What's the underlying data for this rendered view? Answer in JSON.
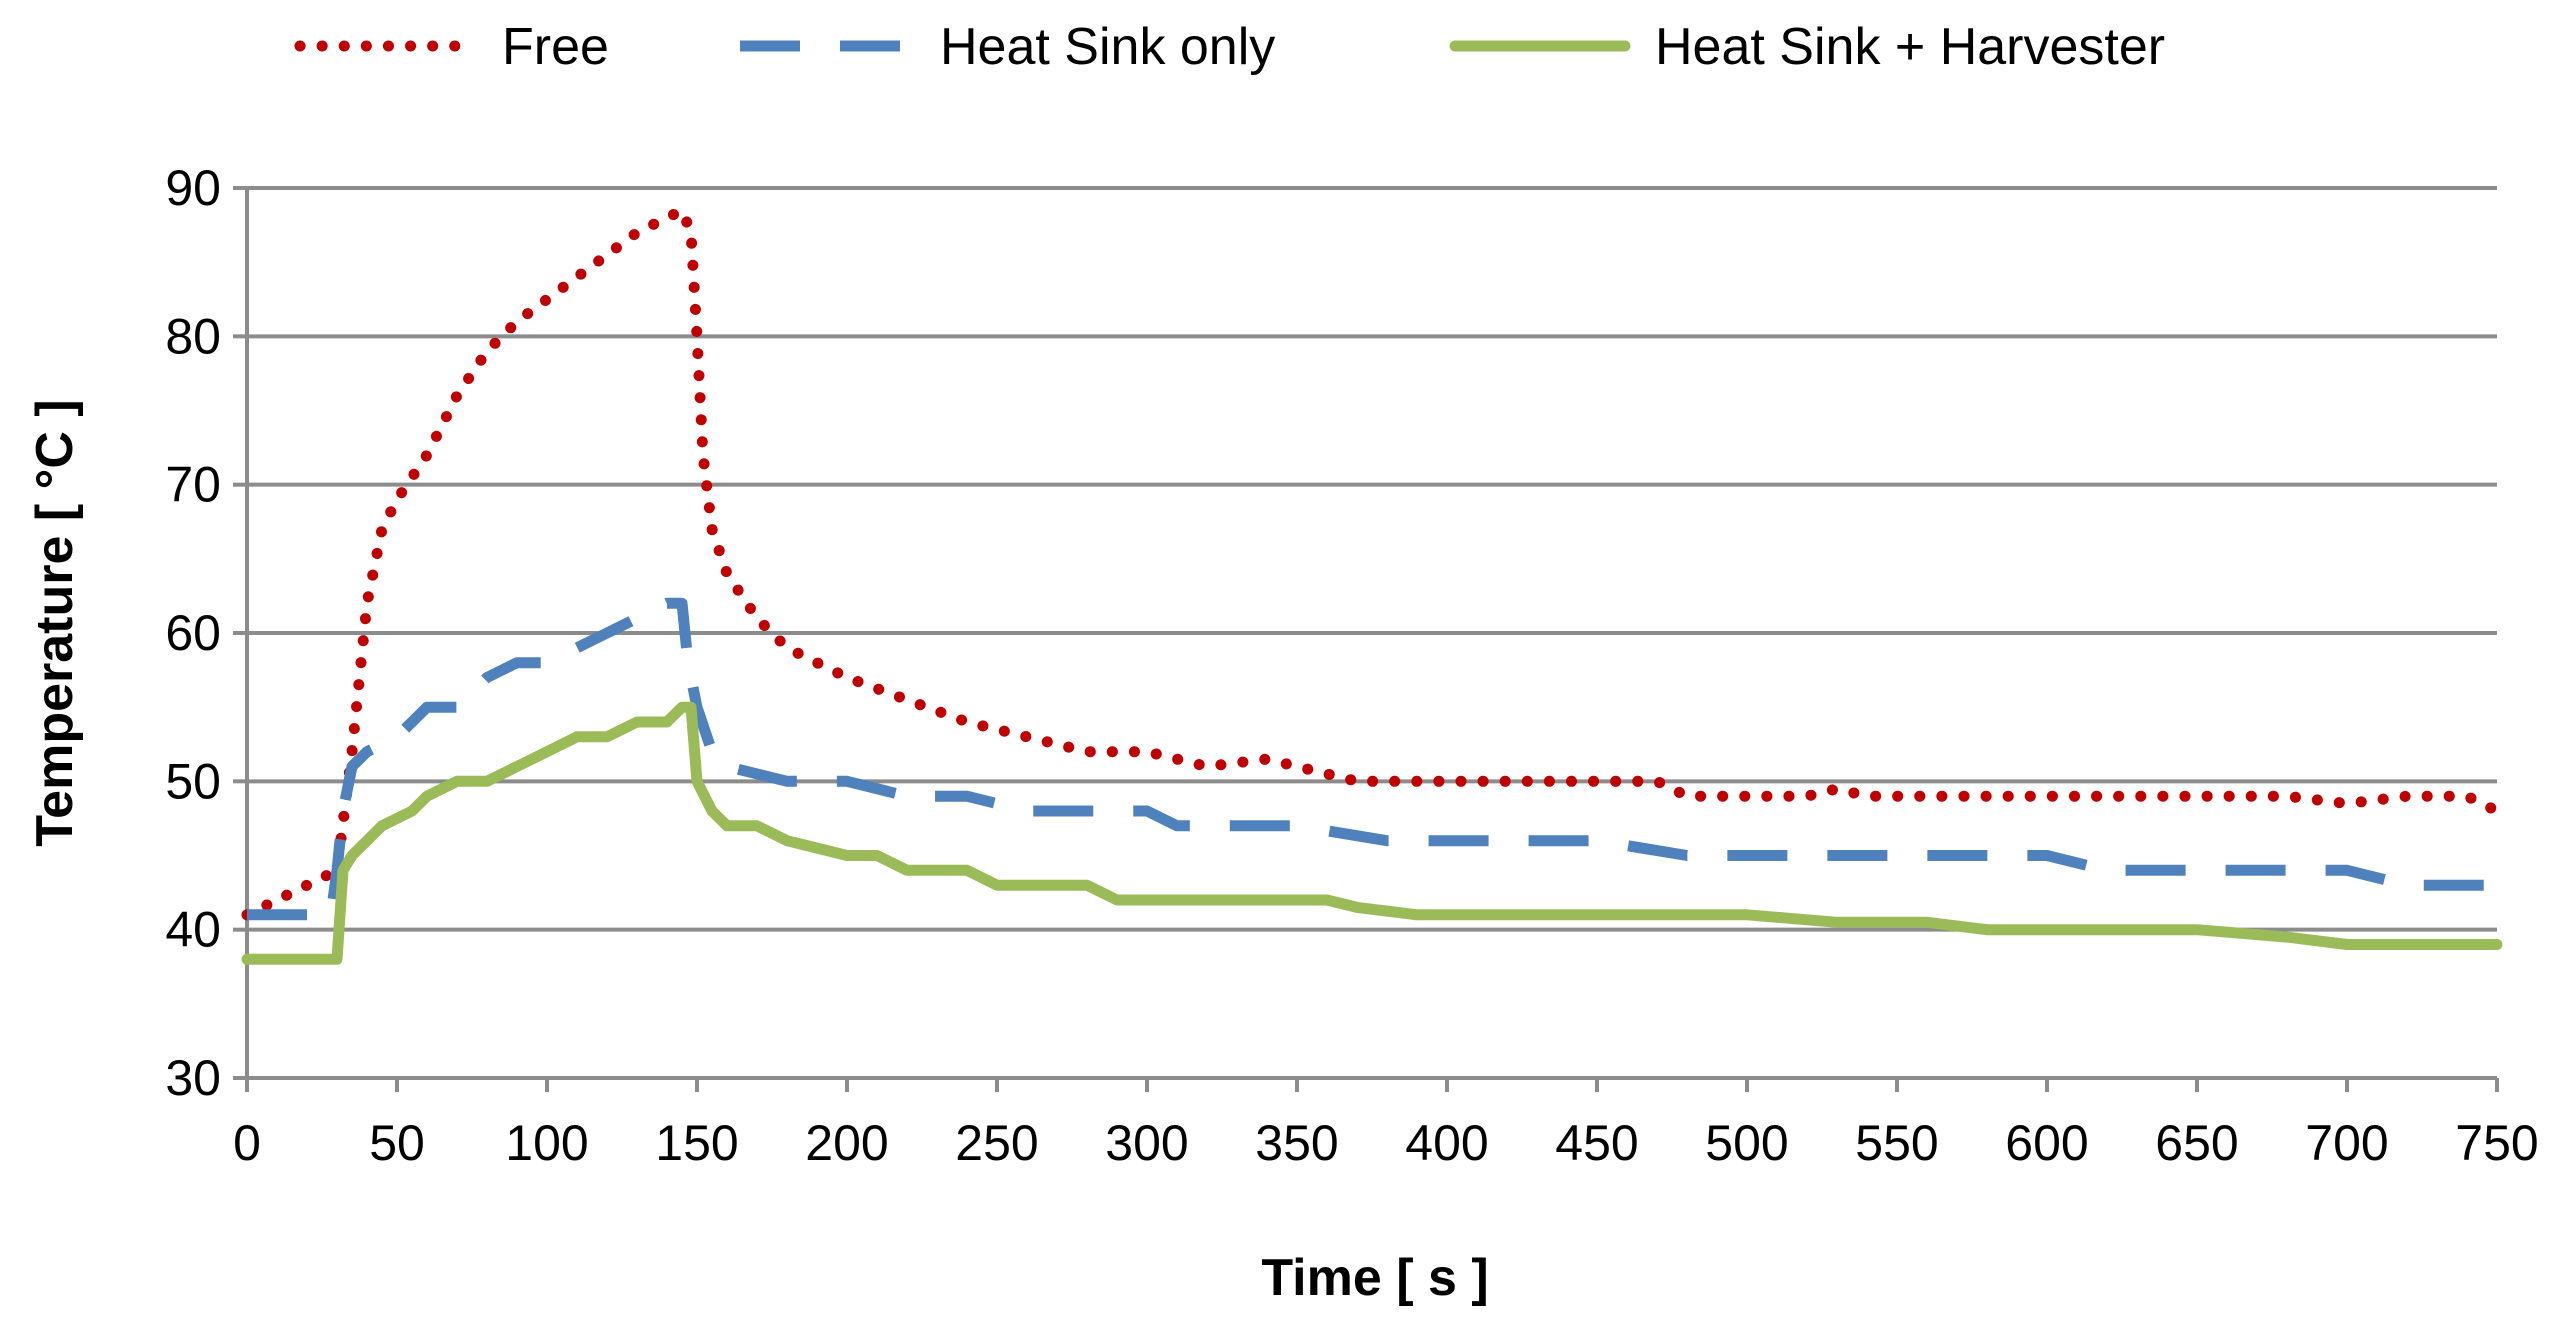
{
  "chart_data": {
    "type": "line",
    "title": "",
    "xlabel": "Time [ s ]",
    "ylabel": "Temperature [ °C ]",
    "xlim": [
      0,
      750
    ],
    "ylim": [
      30,
      90
    ],
    "x_ticks": [
      "0",
      "50",
      "100",
      "150",
      "200",
      "250",
      "300",
      "350",
      "400",
      "450",
      "500",
      "550",
      "600",
      "650",
      "700",
      "750"
    ],
    "y_ticks": [
      "30",
      "40",
      "50",
      "60",
      "70",
      "80",
      "90"
    ],
    "grid": "horizontal",
    "legend_position": "top",
    "series": [
      {
        "name": "Free",
        "color": "#C00000",
        "style": "dotted",
        "points": [
          [
            0,
            41
          ],
          [
            10,
            42
          ],
          [
            20,
            43
          ],
          [
            30,
            44
          ],
          [
            35,
            52
          ],
          [
            40,
            62
          ],
          [
            45,
            67
          ],
          [
            50,
            69
          ],
          [
            60,
            72
          ],
          [
            70,
            76
          ],
          [
            80,
            79
          ],
          [
            90,
            81
          ],
          [
            100,
            82.5
          ],
          [
            110,
            84
          ],
          [
            120,
            85.5
          ],
          [
            130,
            87
          ],
          [
            140,
            88
          ],
          [
            145,
            88.5
          ],
          [
            148,
            87
          ],
          [
            150,
            80
          ],
          [
            152,
            72
          ],
          [
            155,
            67
          ],
          [
            160,
            64
          ],
          [
            170,
            61
          ],
          [
            180,
            59
          ],
          [
            190,
            58
          ],
          [
            200,
            57
          ],
          [
            220,
            55.5
          ],
          [
            240,
            54
          ],
          [
            260,
            53
          ],
          [
            280,
            52
          ],
          [
            300,
            52
          ],
          [
            310,
            51.5
          ],
          [
            320,
            51
          ],
          [
            340,
            51.5
          ],
          [
            350,
            51
          ],
          [
            360,
            50.5
          ],
          [
            370,
            50
          ],
          [
            400,
            50
          ],
          [
            450,
            50
          ],
          [
            470,
            50
          ],
          [
            480,
            49
          ],
          [
            500,
            49
          ],
          [
            520,
            49
          ],
          [
            530,
            49.5
          ],
          [
            540,
            49
          ],
          [
            600,
            49
          ],
          [
            650,
            49
          ],
          [
            680,
            49
          ],
          [
            700,
            48.5
          ],
          [
            720,
            49
          ],
          [
            740,
            49
          ],
          [
            750,
            48
          ]
        ]
      },
      {
        "name": "Heat Sink only",
        "color": "#4F81BD",
        "style": "dashed",
        "points": [
          [
            0,
            41
          ],
          [
            28,
            41
          ],
          [
            30,
            44
          ],
          [
            32,
            48
          ],
          [
            35,
            51
          ],
          [
            40,
            52
          ],
          [
            50,
            53
          ],
          [
            60,
            55
          ],
          [
            70,
            55
          ],
          [
            80,
            57
          ],
          [
            90,
            58
          ],
          [
            100,
            58
          ],
          [
            110,
            59
          ],
          [
            120,
            60
          ],
          [
            130,
            61
          ],
          [
            140,
            62
          ],
          [
            145,
            62
          ],
          [
            147,
            58
          ],
          [
            150,
            55
          ],
          [
            155,
            52
          ],
          [
            160,
            51
          ],
          [
            180,
            50
          ],
          [
            200,
            50
          ],
          [
            220,
            49
          ],
          [
            240,
            49
          ],
          [
            260,
            48
          ],
          [
            300,
            48
          ],
          [
            310,
            47
          ],
          [
            350,
            47
          ],
          [
            380,
            46
          ],
          [
            400,
            46
          ],
          [
            450,
            46
          ],
          [
            480,
            45
          ],
          [
            520,
            45
          ],
          [
            560,
            45
          ],
          [
            600,
            45
          ],
          [
            620,
            44
          ],
          [
            700,
            44
          ],
          [
            720,
            43
          ],
          [
            750,
            43
          ]
        ]
      },
      {
        "name": "Heat Sink + Harvester",
        "color": "#9BBB59",
        "style": "solid",
        "points": [
          [
            0,
            38
          ],
          [
            30,
            38
          ],
          [
            32,
            44
          ],
          [
            35,
            45
          ],
          [
            40,
            46
          ],
          [
            45,
            47
          ],
          [
            55,
            48
          ],
          [
            60,
            49
          ],
          [
            70,
            50
          ],
          [
            80,
            50
          ],
          [
            90,
            51
          ],
          [
            100,
            52
          ],
          [
            110,
            53
          ],
          [
            120,
            53
          ],
          [
            130,
            54
          ],
          [
            140,
            54
          ],
          [
            145,
            55
          ],
          [
            148,
            55
          ],
          [
            150,
            50
          ],
          [
            155,
            48
          ],
          [
            160,
            47
          ],
          [
            170,
            47
          ],
          [
            180,
            46
          ],
          [
            200,
            45
          ],
          [
            210,
            45
          ],
          [
            220,
            44
          ],
          [
            240,
            44
          ],
          [
            250,
            43
          ],
          [
            280,
            43
          ],
          [
            290,
            42
          ],
          [
            360,
            42
          ],
          [
            370,
            41.5
          ],
          [
            390,
            41
          ],
          [
            450,
            41
          ],
          [
            500,
            41
          ],
          [
            530,
            40.5
          ],
          [
            560,
            40.5
          ],
          [
            580,
            40
          ],
          [
            650,
            40
          ],
          [
            680,
            39.5
          ],
          [
            700,
            39
          ],
          [
            750,
            39
          ]
        ]
      }
    ]
  }
}
